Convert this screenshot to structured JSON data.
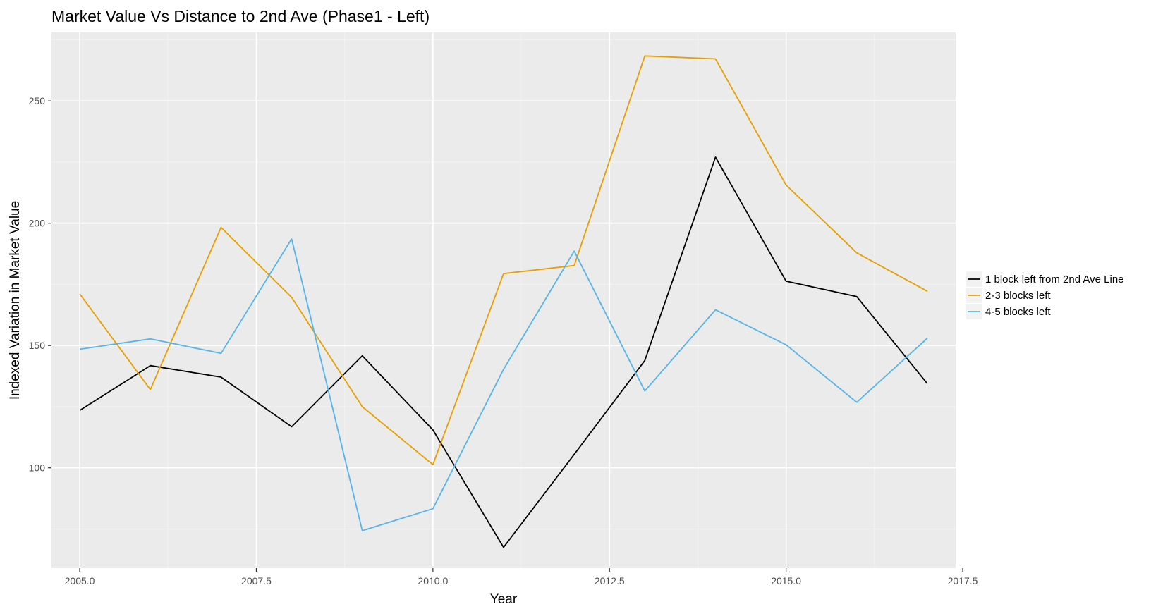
{
  "chart_data": {
    "type": "line",
    "title": "Market Value Vs Distance to 2nd Ave (Phase1 - Left)",
    "xlabel": "Year",
    "ylabel": "Indexed Variation in Market Value",
    "xlim": [
      2004.6,
      2017.4
    ],
    "ylim": [
      59,
      278
    ],
    "x_ticks": [
      2005.0,
      2007.5,
      2010.0,
      2012.5,
      2015.0,
      2017.5
    ],
    "x_tick_labels": [
      "2005.0",
      "2007.5",
      "2010.0",
      "2012.5",
      "2015.0",
      "2017.5"
    ],
    "y_ticks": [
      100,
      150,
      200,
      250
    ],
    "y_tick_labels": [
      "100",
      "150",
      "200",
      "250"
    ],
    "grid": true,
    "legend_position": "right",
    "x": [
      2005,
      2006,
      2007,
      2008,
      2009,
      2010,
      2011,
      2012,
      2013,
      2014,
      2015,
      2016,
      2017
    ],
    "series": [
      {
        "name": "1 block left from 2nd Ave Line",
        "color": "#000000",
        "values": [
          123.5,
          141.8,
          137.1,
          116.8,
          145.8,
          115.5,
          67.5,
          105.5,
          143.9,
          227.0,
          176.3,
          170.0,
          134.4
        ]
      },
      {
        "name": "2-3 blocks left",
        "color": "#E69F00",
        "values": [
          171.1,
          132.0,
          198.3,
          169.7,
          125.0,
          101.3,
          179.4,
          182.7,
          268.4,
          267.2,
          215.6,
          187.9,
          172.2
        ]
      },
      {
        "name": "4-5 blocks left",
        "color": "#56B4E9",
        "values": [
          148.5,
          152.7,
          146.8,
          193.6,
          74.3,
          83.3,
          140.3,
          188.6,
          131.4,
          164.6,
          150.3,
          126.8,
          153.0
        ]
      }
    ]
  },
  "colors": {
    "panel_background": "#EBEBEB",
    "grid_major": "#FFFFFF",
    "grid_minor": "#F2F2F2",
    "tick_text": "#4D4D4D"
  }
}
